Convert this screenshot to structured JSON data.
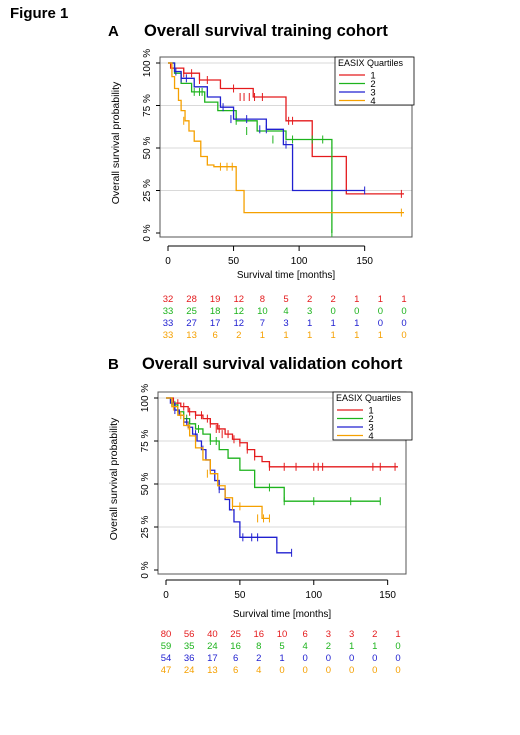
{
  "figure_label": "Figure 1",
  "colors": {
    "q1": "#e41a1c",
    "q2": "#1db31d",
    "q3": "#2020d0",
    "q4": "#f5a000",
    "grid": "#d9d9d9"
  },
  "panels": [
    {
      "letter": "A",
      "title": "Overall survival training cohort",
      "risk_table": [
        [
          32,
          28,
          19,
          12,
          8,
          5,
          2,
          2,
          1,
          1,
          1
        ],
        [
          33,
          25,
          18,
          12,
          10,
          4,
          3,
          0,
          0,
          0,
          0
        ],
        [
          33,
          27,
          17,
          12,
          7,
          3,
          1,
          1,
          1,
          0,
          0
        ],
        [
          33,
          13,
          6,
          2,
          1,
          1,
          1,
          1,
          1,
          1,
          0
        ]
      ]
    },
    {
      "letter": "B",
      "title": "Overall survival validation cohort",
      "risk_table": [
        [
          80,
          56,
          40,
          25,
          16,
          10,
          6,
          3,
          3,
          2,
          1
        ],
        [
          59,
          35,
          24,
          16,
          8,
          5,
          4,
          2,
          1,
          1,
          0
        ],
        [
          54,
          36,
          17,
          6,
          2,
          1,
          0,
          0,
          0,
          0,
          0
        ],
        [
          47,
          24,
          13,
          6,
          4,
          0,
          0,
          0,
          0,
          0,
          0
        ]
      ]
    }
  ],
  "chart_data": [
    {
      "type": "line",
      "subtype": "kaplan-meier step curves",
      "title": "Overall survival training cohort",
      "xlabel": "Survival time [months]",
      "ylabel": "Overall survival probability",
      "xlim": [
        0,
        180
      ],
      "ylim": [
        0,
        100
      ],
      "x_ticks": [
        0,
        50,
        100,
        150
      ],
      "y_ticks": [
        "0 %",
        "25 %",
        "50 %",
        "75 %",
        "100 %"
      ],
      "grid": "horizontal",
      "legend_title": "EASIX Quartiles",
      "legend_position": "top-right",
      "series": [
        {
          "name": "1",
          "color": "#e41a1c",
          "x": [
            0,
            2,
            12,
            24,
            40,
            65,
            90,
            110,
            136,
            180
          ],
          "y": [
            100,
            97,
            94,
            90,
            85,
            80,
            66,
            45,
            23,
            23
          ],
          "censor_x": [
            12,
            18,
            24,
            30,
            50,
            55,
            58,
            62,
            66,
            72,
            92,
            95,
            178
          ],
          "censor_y": [
            94,
            94,
            90,
            90,
            85,
            80,
            80,
            80,
            80,
            80,
            66,
            66,
            23
          ]
        },
        {
          "name": "2",
          "color": "#1db31d",
          "x": [
            0,
            5,
            10,
            18,
            28,
            38,
            52,
            68,
            90,
            125,
            125
          ],
          "y": [
            100,
            94,
            88,
            83,
            77,
            72,
            66,
            60,
            55,
            55,
            0
          ],
          "censor_x": [
            20,
            24,
            26,
            52,
            60,
            80,
            95,
            110,
            118,
            125
          ],
          "censor_y": [
            83,
            83,
            83,
            66,
            60,
            55,
            55,
            55,
            55,
            0
          ]
        },
        {
          "name": "3",
          "color": "#2020d0",
          "x": [
            0,
            5,
            10,
            20,
            30,
            40,
            50,
            75,
            88,
            95,
            150
          ],
          "y": [
            100,
            95,
            91,
            86,
            80,
            74,
            67,
            61,
            52,
            25,
            25
          ],
          "censor_x": [
            6,
            10,
            14,
            42,
            48,
            60,
            70,
            75,
            90,
            150
          ],
          "censor_y": [
            95,
            91,
            91,
            74,
            67,
            67,
            61,
            61,
            52,
            25
          ]
        },
        {
          "name": "4",
          "color": "#f5a000",
          "x": [
            0,
            3,
            5,
            8,
            10,
            13,
            16,
            20,
            25,
            30,
            35,
            52,
            58,
            180
          ],
          "y": [
            100,
            92,
            85,
            78,
            72,
            66,
            60,
            54,
            45,
            40,
            39,
            25,
            12,
            12
          ],
          "censor_x": [
            12,
            40,
            45,
            49,
            178
          ],
          "censor_y": [
            66,
            39,
            39,
            39,
            12
          ]
        }
      ],
      "risk_table_x": [
        0,
        18,
        36,
        54,
        72,
        90,
        108,
        126,
        144,
        162,
        180
      ]
    },
    {
      "type": "line",
      "subtype": "kaplan-meier step curves",
      "title": "Overall survival validation cohort",
      "xlabel": "Survival time [months]",
      "ylabel": "Overall survival probability",
      "xlim": [
        0,
        157
      ],
      "ylim": [
        0,
        100
      ],
      "x_ticks": [
        0,
        50,
        100,
        150
      ],
      "y_ticks": [
        "0 %",
        "25 %",
        "50 %",
        "75 %",
        "100 %"
      ],
      "grid": "horizontal",
      "legend_title": "EASIX Quartiles",
      "legend_position": "top-right",
      "series": [
        {
          "name": "1",
          "color": "#e41a1c",
          "x": [
            0,
            5,
            10,
            15,
            20,
            25,
            30,
            35,
            40,
            45,
            50,
            55,
            60,
            65,
            70,
            157
          ],
          "y": [
            100,
            97,
            95,
            92,
            90,
            88,
            85,
            82,
            79,
            76,
            74,
            70,
            66,
            63,
            60,
            60
          ],
          "censor_x": [
            4,
            8,
            12,
            16,
            20,
            24,
            28,
            30,
            34,
            36,
            38,
            42,
            46,
            50,
            55,
            60,
            70,
            80,
            88,
            100,
            103,
            106,
            140,
            145,
            155
          ],
          "censor_y": [
            97,
            97,
            95,
            92,
            90,
            90,
            88,
            85,
            82,
            82,
            79,
            79,
            76,
            74,
            70,
            66,
            60,
            60,
            60,
            60,
            60,
            60,
            60,
            60,
            60
          ]
        },
        {
          "name": "2",
          "color": "#1db31d",
          "x": [
            0,
            4,
            8,
            12,
            16,
            20,
            25,
            30,
            36,
            42,
            50,
            60,
            75,
            80,
            145
          ],
          "y": [
            100,
            96,
            92,
            88,
            85,
            82,
            79,
            75,
            70,
            65,
            58,
            48,
            48,
            40,
            40
          ],
          "censor_x": [
            6,
            14,
            22,
            30,
            34,
            70,
            80,
            100,
            125,
            145
          ],
          "censor_y": [
            96,
            88,
            82,
            75,
            75,
            48,
            40,
            40,
            40,
            40
          ]
        },
        {
          "name": "3",
          "color": "#2020d0",
          "x": [
            0,
            3,
            6,
            9,
            12,
            15,
            18,
            21,
            24,
            27,
            30,
            33,
            36,
            40,
            43,
            46,
            50,
            60,
            75,
            85
          ],
          "y": [
            100,
            97,
            93,
            90,
            86,
            83,
            79,
            75,
            70,
            64,
            58,
            52,
            47,
            41,
            35,
            28,
            19,
            19,
            10,
            10
          ],
          "censor_x": [
            6,
            14,
            20,
            25,
            36,
            52,
            58,
            62,
            85
          ],
          "censor_y": [
            93,
            86,
            79,
            70,
            47,
            19,
            19,
            19,
            10
          ]
        },
        {
          "name": "4",
          "color": "#f5a000",
          "x": [
            0,
            4,
            8,
            12,
            16,
            20,
            25,
            30,
            35,
            40,
            45,
            60,
            65,
            70
          ],
          "y": [
            100,
            95,
            90,
            84,
            78,
            71,
            64,
            56,
            49,
            42,
            37,
            37,
            30,
            30
          ],
          "censor_x": [
            5,
            10,
            15,
            28,
            45,
            50,
            62,
            66,
            70
          ],
          "censor_y": [
            95,
            90,
            84,
            56,
            37,
            37,
            30,
            30,
            30
          ]
        }
      ],
      "risk_table_x": [
        0,
        15.7,
        31.4,
        47.1,
        62.8,
        78.5,
        94.2,
        109.9,
        125.6,
        141.3,
        157
      ]
    }
  ]
}
